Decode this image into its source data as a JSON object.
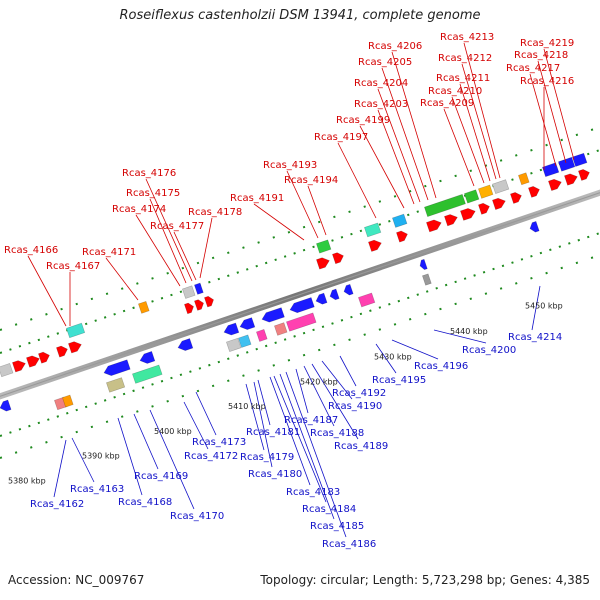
{
  "title": "Roseiflexus castenholzii DSM 13941, complete genome",
  "footer": {
    "accession": "Accession: NC_009767",
    "summary": "Topology: circular; Length: 5,723,298 bp; Genes: 4,385"
  },
  "scale": {
    "ticks": [
      "5380 kbp",
      "5390 kbp",
      "5400 kbp",
      "5410 kbp",
      "5420 kbp",
      "5430 kbp",
      "5440 kbp",
      "5450 kbp"
    ]
  },
  "genes_forward": [
    "Rcas_4166",
    "Rcas_4167",
    "Rcas_4171",
    "Rcas_4174",
    "Rcas_4175",
    "Rcas_4176",
    "Rcas_4177",
    "Rcas_4178",
    "Rcas_4191",
    "Rcas_4193",
    "Rcas_4194",
    "Rcas_4197",
    "Rcas_4199",
    "Rcas_4203",
    "Rcas_4204",
    "Rcas_4205",
    "Rcas_4206",
    "Rcas_4209",
    "Rcas_4210",
    "Rcas_4211",
    "Rcas_4212",
    "Rcas_4213",
    "Rcas_4216",
    "Rcas_4217",
    "Rcas_4218",
    "Rcas_4219"
  ],
  "genes_reverse": [
    "Rcas_4162",
    "Rcas_4163",
    "Rcas_4168",
    "Rcas_4169",
    "Rcas_4170",
    "Rcas_4172",
    "Rcas_4173",
    "Rcas_4179",
    "Rcas_4180",
    "Rcas_4181",
    "Rcas_4183",
    "Rcas_4184",
    "Rcas_4185",
    "Rcas_4186",
    "Rcas_4187",
    "Rcas_4188",
    "Rcas_4189",
    "Rcas_4190",
    "Rcas_4192",
    "Rcas_4195",
    "Rcas_4196",
    "Rcas_4200",
    "Rcas_4214"
  ],
  "colors": {
    "forward_label": "#d40000",
    "reverse_label": "#1010c8",
    "forward_gene": "#ff0000",
    "reverse_gene": "#1a1aff",
    "axis_tick": "#1f8a1f",
    "backbone": "#888888"
  }
}
